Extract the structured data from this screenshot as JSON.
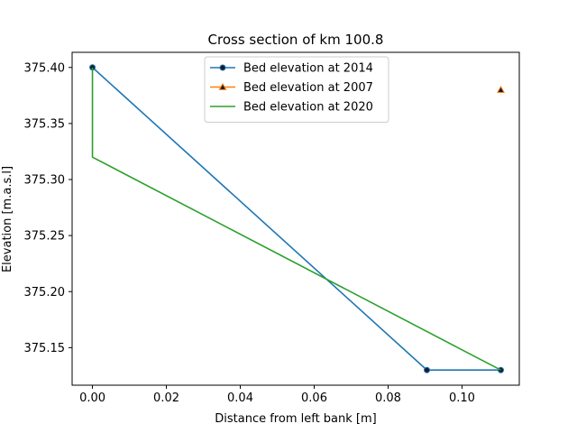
{
  "chart_data": {
    "type": "line",
    "title": "Cross section of km 100.8",
    "xlabel": "Distance from left bank [m]",
    "ylabel": "Elevation [m.a.s.l]",
    "xlim": [
      -0.0055,
      0.1155
    ],
    "ylim": [
      375.1165,
      375.4135
    ],
    "xticks": [
      0.0,
      0.02,
      0.04,
      0.06,
      0.08,
      0.1
    ],
    "xtick_labels": [
      "0.00",
      "0.02",
      "0.04",
      "0.06",
      "0.08",
      "0.10"
    ],
    "yticks": [
      375.15,
      375.2,
      375.25,
      375.3,
      375.35,
      375.4
    ],
    "ytick_labels": [
      "375.15",
      "375.20",
      "375.25",
      "375.30",
      "375.35",
      "375.40"
    ],
    "grid": false,
    "legend_position": "top-center",
    "series": [
      {
        "name": "Bed elevation at 2014",
        "color": "#1f77b4",
        "marker": "circle",
        "marker_face": "#1a1a2e",
        "x": [
          0.0,
          0.0905,
          0.1105
        ],
        "y": [
          375.4,
          375.13,
          375.13
        ]
      },
      {
        "name": "Bed elevation at 2007",
        "color": "#ff7f0e",
        "marker": "triangle",
        "marker_face": "#1a1a2e",
        "x": [
          0.1105
        ],
        "y": [
          375.38
        ]
      },
      {
        "name": "Bed elevation at 2020",
        "color": "#2ca02c",
        "marker": "none",
        "x": [
          0.0,
          0.0,
          0.1105
        ],
        "y": [
          375.4,
          375.32,
          375.13
        ]
      }
    ]
  }
}
